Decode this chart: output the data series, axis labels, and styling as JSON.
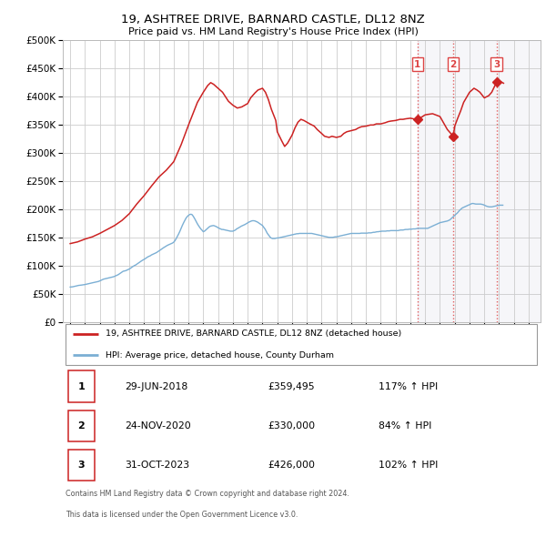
{
  "title": "19, ASHTREE DRIVE, BARNARD CASTLE, DL12 8NZ",
  "subtitle": "Price paid vs. HM Land Registry's House Price Index (HPI)",
  "legend_line1": "19, ASHTREE DRIVE, BARNARD CASTLE, DL12 8NZ (detached house)",
  "legend_line2": "HPI: Average price, detached house, County Durham",
  "footer1": "Contains HM Land Registry data © Crown copyright and database right 2024.",
  "footer2": "This data is licensed under the Open Government Licence v3.0.",
  "hpi_color": "#7bafd4",
  "price_color": "#cc2222",
  "marker_color": "#cc2222",
  "background_color": "#ffffff",
  "grid_color": "#cccccc",
  "dotted_line_color": "#dd4444",
  "ylim": [
    0,
    500000
  ],
  "yticks": [
    0,
    50000,
    100000,
    150000,
    200000,
    250000,
    300000,
    350000,
    400000,
    450000,
    500000
  ],
  "xlim_start": 1994.5,
  "xlim_end": 2026.8,
  "sales": [
    {
      "num": 1,
      "date": "29-JUN-2018",
      "price": 359495,
      "year": 2018.49,
      "price_str": "£359,495",
      "hpi_pct": "117%",
      "label": "1"
    },
    {
      "num": 2,
      "date": "24-NOV-2020",
      "price": 330000,
      "year": 2020.9,
      "price_str": "£330,000",
      "hpi_pct": "84%",
      "label": "2"
    },
    {
      "num": 3,
      "date": "31-OCT-2023",
      "price": 426000,
      "year": 2023.83,
      "price_str": "£426,000",
      "hpi_pct": "102%",
      "label": "3"
    }
  ],
  "hpi_data_years": [
    1995.0,
    1995.08,
    1995.17,
    1995.25,
    1995.33,
    1995.42,
    1995.5,
    1995.58,
    1995.67,
    1995.75,
    1995.83,
    1995.92,
    1996.0,
    1996.08,
    1996.17,
    1996.25,
    1996.33,
    1996.42,
    1996.5,
    1996.58,
    1996.67,
    1996.75,
    1996.83,
    1996.92,
    1997.0,
    1997.08,
    1997.17,
    1997.25,
    1997.33,
    1997.42,
    1997.5,
    1997.58,
    1997.67,
    1997.75,
    1997.83,
    1997.92,
    1998.0,
    1998.08,
    1998.17,
    1998.25,
    1998.33,
    1998.42,
    1998.5,
    1998.58,
    1998.67,
    1998.75,
    1998.83,
    1998.92,
    1999.0,
    1999.08,
    1999.17,
    1999.25,
    1999.33,
    1999.42,
    1999.5,
    1999.58,
    1999.67,
    1999.75,
    1999.83,
    1999.92,
    2000.0,
    2000.08,
    2000.17,
    2000.25,
    2000.33,
    2000.42,
    2000.5,
    2000.58,
    2000.67,
    2000.75,
    2000.83,
    2000.92,
    2001.0,
    2001.08,
    2001.17,
    2001.25,
    2001.33,
    2001.42,
    2001.5,
    2001.58,
    2001.67,
    2001.75,
    2001.83,
    2001.92,
    2002.0,
    2002.08,
    2002.17,
    2002.25,
    2002.33,
    2002.42,
    2002.5,
    2002.58,
    2002.67,
    2002.75,
    2002.83,
    2002.92,
    2003.0,
    2003.08,
    2003.17,
    2003.25,
    2003.33,
    2003.42,
    2003.5,
    2003.58,
    2003.67,
    2003.75,
    2003.83,
    2003.92,
    2004.0,
    2004.08,
    2004.17,
    2004.25,
    2004.33,
    2004.42,
    2004.5,
    2004.58,
    2004.67,
    2004.75,
    2004.83,
    2004.92,
    2005.0,
    2005.08,
    2005.17,
    2005.25,
    2005.33,
    2005.42,
    2005.5,
    2005.58,
    2005.67,
    2005.75,
    2005.83,
    2005.92,
    2006.0,
    2006.08,
    2006.17,
    2006.25,
    2006.33,
    2006.42,
    2006.5,
    2006.58,
    2006.67,
    2006.75,
    2006.83,
    2006.92,
    2007.0,
    2007.08,
    2007.17,
    2007.25,
    2007.33,
    2007.42,
    2007.5,
    2007.58,
    2007.67,
    2007.75,
    2007.83,
    2007.92,
    2008.0,
    2008.08,
    2008.17,
    2008.25,
    2008.33,
    2008.42,
    2008.5,
    2008.58,
    2008.67,
    2008.75,
    2008.83,
    2008.92,
    2009.0,
    2009.08,
    2009.17,
    2009.25,
    2009.33,
    2009.42,
    2009.5,
    2009.58,
    2009.67,
    2009.75,
    2009.83,
    2009.92,
    2010.0,
    2010.08,
    2010.17,
    2010.25,
    2010.33,
    2010.42,
    2010.5,
    2010.58,
    2010.67,
    2010.75,
    2010.83,
    2010.92,
    2011.0,
    2011.08,
    2011.17,
    2011.25,
    2011.33,
    2011.42,
    2011.5,
    2011.58,
    2011.67,
    2011.75,
    2011.83,
    2011.92,
    2012.0,
    2012.08,
    2012.17,
    2012.25,
    2012.33,
    2012.42,
    2012.5,
    2012.58,
    2012.67,
    2012.75,
    2012.83,
    2012.92,
    2013.0,
    2013.08,
    2013.17,
    2013.25,
    2013.33,
    2013.42,
    2013.5,
    2013.58,
    2013.67,
    2013.75,
    2013.83,
    2013.92,
    2014.0,
    2014.08,
    2014.17,
    2014.25,
    2014.33,
    2014.42,
    2014.5,
    2014.58,
    2014.67,
    2014.75,
    2014.83,
    2014.92,
    2015.0,
    2015.08,
    2015.17,
    2015.25,
    2015.33,
    2015.42,
    2015.5,
    2015.58,
    2015.67,
    2015.75,
    2015.83,
    2015.92,
    2016.0,
    2016.08,
    2016.17,
    2016.25,
    2016.33,
    2016.42,
    2016.5,
    2016.58,
    2016.67,
    2016.75,
    2016.83,
    2016.92,
    2017.0,
    2017.08,
    2017.17,
    2017.25,
    2017.33,
    2017.42,
    2017.5,
    2017.58,
    2017.67,
    2017.75,
    2017.83,
    2017.92,
    2018.0,
    2018.08,
    2018.17,
    2018.25,
    2018.33,
    2018.42,
    2018.5,
    2018.58,
    2018.67,
    2018.75,
    2018.83,
    2018.92,
    2019.0,
    2019.08,
    2019.17,
    2019.25,
    2019.33,
    2019.42,
    2019.5,
    2019.58,
    2019.67,
    2019.75,
    2019.83,
    2019.92,
    2020.0,
    2020.08,
    2020.17,
    2020.25,
    2020.33,
    2020.42,
    2020.5,
    2020.58,
    2020.67,
    2020.75,
    2020.83,
    2020.92,
    2021.0,
    2021.08,
    2021.17,
    2021.25,
    2021.33,
    2021.42,
    2021.5,
    2021.58,
    2021.67,
    2021.75,
    2021.83,
    2021.92,
    2022.0,
    2022.08,
    2022.17,
    2022.25,
    2022.33,
    2022.42,
    2022.5,
    2022.58,
    2022.67,
    2022.75,
    2022.83,
    2022.92,
    2023.0,
    2023.08,
    2023.17,
    2023.25,
    2023.33,
    2023.42,
    2023.5,
    2023.58,
    2023.67,
    2023.75,
    2023.83,
    2023.92,
    2024.0,
    2024.08,
    2024.17,
    2024.25
  ],
  "hpi_data_values": [
    63000,
    63200,
    63500,
    64000,
    64500,
    65000,
    65500,
    66000,
    66200,
    66500,
    66800,
    67200,
    67500,
    68000,
    68500,
    69000,
    69500,
    70000,
    70500,
    71000,
    71500,
    72000,
    72500,
    73000,
    74000,
    75000,
    76000,
    77000,
    77500,
    78000,
    78500,
    79000,
    79500,
    80000,
    80500,
    81200,
    82000,
    83000,
    84000,
    85000,
    86500,
    88000,
    89500,
    91000,
    91500,
    92000,
    93000,
    94000,
    95000,
    96500,
    98000,
    99500,
    101000,
    102000,
    103500,
    105000,
    106500,
    108000,
    109500,
    111000,
    112000,
    113500,
    115000,
    116500,
    117500,
    118500,
    120000,
    121000,
    122000,
    123000,
    124000,
    125500,
    127000,
    128500,
    130000,
    131500,
    133000,
    134500,
    136000,
    137000,
    138000,
    139000,
    140000,
    141000,
    142500,
    145000,
    149000,
    153000,
    157000,
    162000,
    167000,
    172000,
    177000,
    181000,
    185000,
    188000,
    190000,
    191500,
    192000,
    191000,
    188000,
    184000,
    180000,
    176000,
    172000,
    169000,
    166000,
    163500,
    161000,
    162000,
    164000,
    166000,
    168000,
    170000,
    171000,
    171500,
    172000,
    171500,
    170500,
    169500,
    168000,
    167000,
    166000,
    165000,
    165000,
    164500,
    164000,
    163500,
    163000,
    162500,
    162000,
    162000,
    162000,
    163000,
    164000,
    166000,
    167000,
    168500,
    170000,
    171000,
    172000,
    173000,
    174000,
    175500,
    177000,
    178000,
    179000,
    180000,
    180500,
    180500,
    180000,
    179000,
    178000,
    176500,
    175000,
    173500,
    172000,
    169000,
    166000,
    162000,
    158000,
    155000,
    152000,
    150000,
    149000,
    149000,
    149000,
    149500,
    150000,
    150000,
    150500,
    151000,
    151500,
    152000,
    152500,
    153000,
    153500,
    154000,
    154500,
    155000,
    155500,
    156000,
    156500,
    157000,
    157500,
    157500,
    158000,
    158000,
    158000,
    158000,
    158000,
    158000,
    158000,
    158000,
    158000,
    158000,
    158000,
    157500,
    157000,
    156500,
    156000,
    155500,
    155000,
    154500,
    154000,
    153500,
    153000,
    152500,
    152000,
    151500,
    151000,
    151000,
    151000,
    151000,
    151500,
    152000,
    152000,
    152500,
    153000,
    153500,
    154000,
    154500,
    155000,
    155500,
    156000,
    156500,
    157000,
    157500,
    158000,
    158000,
    158000,
    158000,
    158000,
    158000,
    158000,
    158000,
    158500,
    158500,
    158500,
    158500,
    158500,
    158500,
    159000,
    159000,
    159000,
    159500,
    160000,
    160000,
    160500,
    161000,
    161000,
    161500,
    161500,
    162000,
    162000,
    162000,
    162000,
    162500,
    162500,
    162500,
    163000,
    163000,
    163000,
    163000,
    163000,
    163000,
    163000,
    163500,
    164000,
    164000,
    164000,
    164500,
    165000,
    165000,
    165000,
    165500,
    165500,
    165500,
    166000,
    166000,
    166000,
    166500,
    167000,
    167000,
    167000,
    167000,
    167000,
    167000,
    167000,
    167000,
    167000,
    168000,
    169000,
    170000,
    171000,
    172000,
    173000,
    174000,
    175000,
    176000,
    177000,
    177500,
    178000,
    178500,
    179000,
    179500,
    180000,
    181000,
    182000,
    184000,
    186000,
    188000,
    190000,
    192000,
    194000,
    196500,
    199000,
    201000,
    203000,
    204000,
    205000,
    206000,
    207000,
    208000,
    209000,
    210000,
    211000,
    211000,
    210500,
    210000,
    210000,
    210000,
    210000,
    210000,
    209500,
    209000,
    208000,
    207000,
    206000,
    205500,
    205000,
    205000,
    205000,
    205500,
    206000,
    206500,
    207000,
    207500,
    208000,
    208000,
    208000,
    208000
  ],
  "price_data_years": [
    1995.0,
    1995.5,
    1996.0,
    1996.5,
    1997.0,
    1997.5,
    1998.0,
    1998.5,
    1999.0,
    1999.5,
    2000.0,
    2000.5,
    2001.0,
    2001.5,
    2002.0,
    2002.5,
    2003.0,
    2003.3,
    2003.6,
    2004.0,
    2004.3,
    2004.5,
    2004.7,
    2005.0,
    2005.3,
    2005.5,
    2005.7,
    2006.0,
    2006.3,
    2006.6,
    2007.0,
    2007.2,
    2007.5,
    2007.7,
    2008.0,
    2008.2,
    2008.4,
    2008.6,
    2008.9,
    2009.0,
    2009.3,
    2009.5,
    2009.7,
    2010.0,
    2010.2,
    2010.4,
    2010.6,
    2010.8,
    2011.0,
    2011.2,
    2011.5,
    2011.7,
    2012.0,
    2012.2,
    2012.5,
    2012.7,
    2013.0,
    2013.3,
    2013.5,
    2013.7,
    2014.0,
    2014.3,
    2014.5,
    2014.7,
    2015.0,
    2015.3,
    2015.5,
    2015.7,
    2016.0,
    2016.3,
    2016.5,
    2016.7,
    2017.0,
    2017.3,
    2017.5,
    2017.7,
    2018.0,
    2018.49,
    2019.0,
    2019.5,
    2020.0,
    2020.5,
    2020.9,
    2021.0,
    2021.2,
    2021.4,
    2021.6,
    2022.0,
    2022.3,
    2022.5,
    2022.7,
    2023.0,
    2023.3,
    2023.5,
    2023.83,
    2024.0,
    2024.3
  ],
  "price_data_values": [
    140000,
    143000,
    148000,
    152000,
    158000,
    165000,
    172000,
    181000,
    193000,
    210000,
    225000,
    242000,
    258000,
    270000,
    285000,
    315000,
    350000,
    370000,
    390000,
    408000,
    420000,
    425000,
    422000,
    415000,
    408000,
    400000,
    392000,
    385000,
    380000,
    382000,
    388000,
    398000,
    407000,
    412000,
    415000,
    408000,
    395000,
    378000,
    358000,
    338000,
    322000,
    312000,
    318000,
    332000,
    345000,
    355000,
    360000,
    358000,
    355000,
    352000,
    348000,
    342000,
    335000,
    330000,
    328000,
    330000,
    328000,
    330000,
    335000,
    338000,
    340000,
    342000,
    345000,
    347000,
    348000,
    350000,
    350000,
    352000,
    352000,
    354000,
    356000,
    357000,
    358000,
    360000,
    360000,
    361000,
    362000,
    359495,
    368000,
    370000,
    365000,
    342000,
    330000,
    348000,
    362000,
    375000,
    390000,
    408000,
    415000,
    412000,
    408000,
    398000,
    402000,
    408000,
    426000,
    428000,
    424000
  ]
}
